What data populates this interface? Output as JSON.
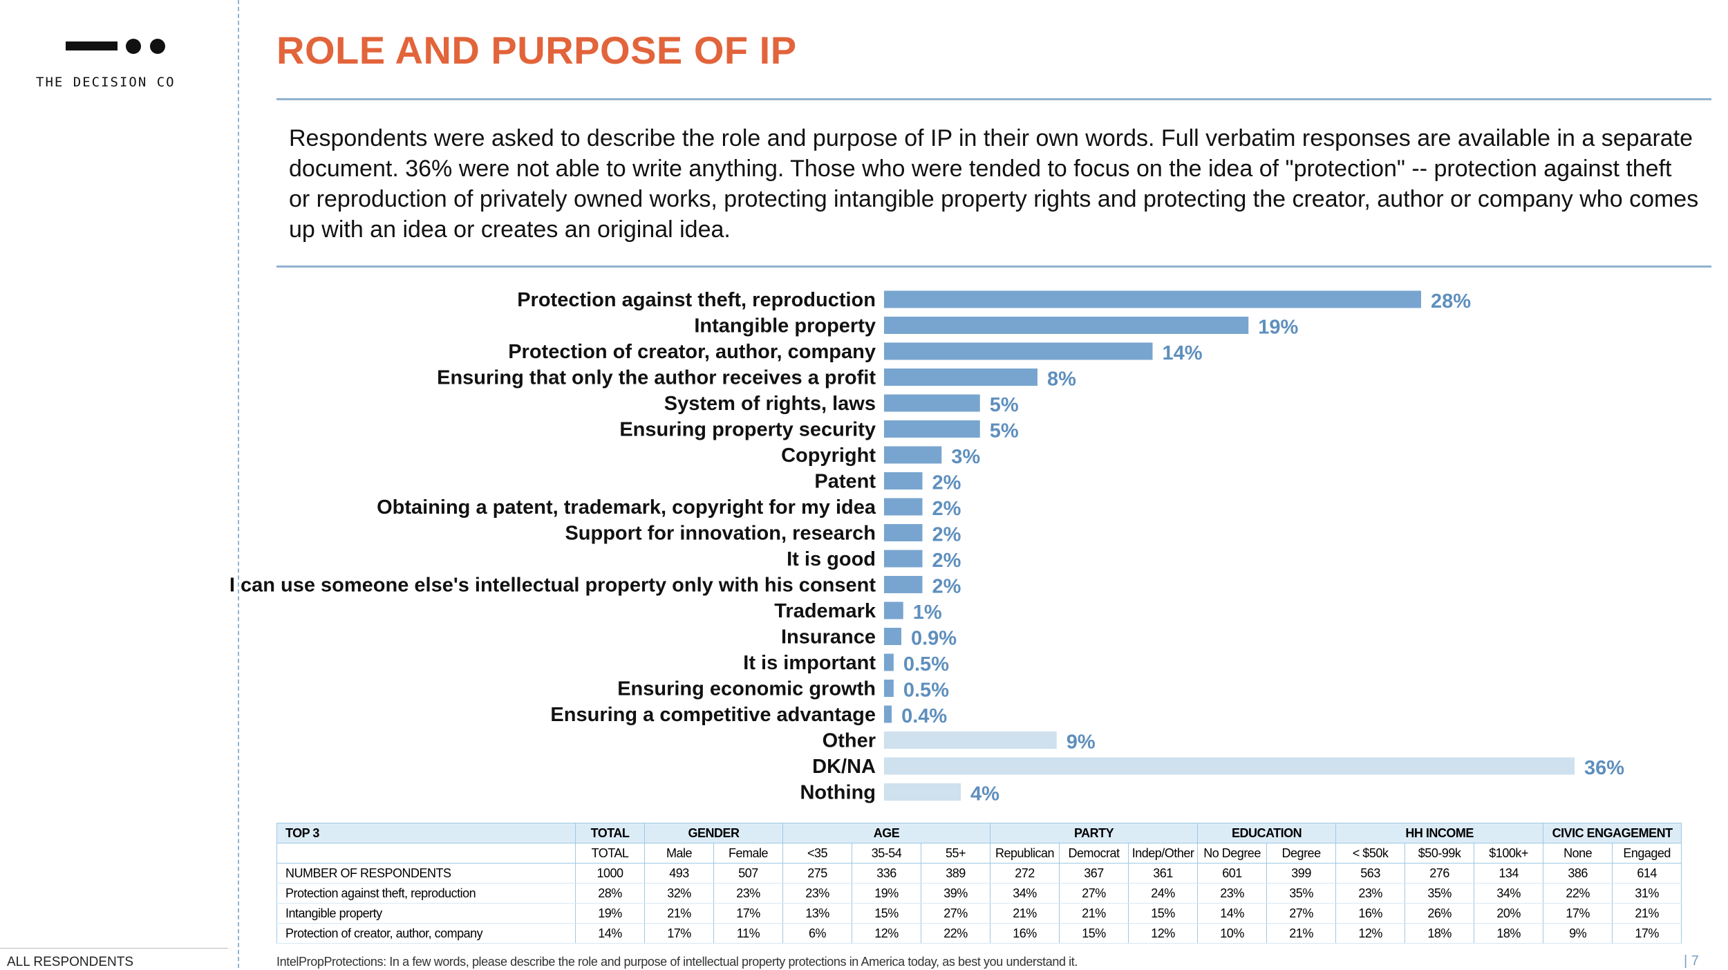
{
  "brand": {
    "name": "THE DECISION CO"
  },
  "header": {
    "title": "ROLE AND PURPOSE OF IP"
  },
  "intro": "Respondents were asked to describe the role and purpose of IP in their own words. Full verbatim responses are available in a separate document. 36% were not able to write anything.  Those who were tended to focus on the idea of \"protection\" -- protection against theft or reproduction of privately owned works, protecting intangible property rights and protecting the creator, author or company who comes up with an idea or creates an original idea.",
  "chart_data": {
    "type": "bar",
    "orientation": "horizontal",
    "title": "",
    "xlabel": "",
    "ylabel": "",
    "xlim": [
      0,
      36
    ],
    "categories": [
      "Protection against theft, reproduction",
      "Intangible property",
      "Protection of creator, author, company",
      "Ensuring that only the author receives a profit",
      "System of rights, laws",
      "Ensuring property security",
      "Copyright",
      "Patent",
      "Obtaining a patent, trademark, copyright for my idea",
      "Support for innovation, research",
      "It is good",
      "I can use someone else's intellectual property only with his consent",
      "Trademark",
      "Insurance",
      "It is important",
      "Ensuring economic growth",
      "Ensuring a competitive advantage",
      "Other",
      "DK/NA",
      "Nothing"
    ],
    "values": [
      28,
      19,
      14,
      8,
      5,
      5,
      3,
      2,
      2,
      2,
      2,
      2,
      1,
      0.9,
      0.5,
      0.5,
      0.4,
      9,
      36,
      4
    ],
    "value_labels": [
      "28%",
      "19%",
      "14%",
      "8%",
      "5%",
      "5%",
      "3%",
      "2%",
      "2%",
      "2%",
      "2%",
      "2%",
      "1%",
      "0.9%",
      "0.5%",
      "0.5%",
      "0.4%",
      "9%",
      "36%",
      "4%"
    ],
    "groups": [
      "main",
      "main",
      "main",
      "main",
      "main",
      "main",
      "main",
      "main",
      "main",
      "main",
      "main",
      "main",
      "main",
      "main",
      "main",
      "main",
      "main",
      "other",
      "other",
      "other"
    ],
    "colors": {
      "main": "#78a5cf",
      "other": "#cfe0ee",
      "value_text": "#5e8fbd"
    }
  },
  "table": {
    "title": "TOP 3",
    "groups": [
      {
        "label": "TOTAL",
        "cols": [
          "TOTAL"
        ]
      },
      {
        "label": "GENDER",
        "cols": [
          "Male",
          "Female"
        ]
      },
      {
        "label": "AGE",
        "cols": [
          "<35",
          "35-54",
          "55+"
        ]
      },
      {
        "label": "PARTY",
        "cols": [
          "Republican",
          "Democrat",
          "Indep/Other"
        ]
      },
      {
        "label": "EDUCATION",
        "cols": [
          "No Degree",
          "Degree"
        ]
      },
      {
        "label": "HH INCOME",
        "cols": [
          "< $50k",
          "$50-99k",
          "$100k+"
        ]
      },
      {
        "label": "CIVIC ENGAGEMENT",
        "cols": [
          "None",
          "Engaged"
        ]
      }
    ],
    "rows": [
      {
        "label": "NUMBER OF RESPONDENTS",
        "values": [
          "1000",
          "493",
          "507",
          "275",
          "336",
          "389",
          "272",
          "367",
          "361",
          "601",
          "399",
          "563",
          "276",
          "134",
          "386",
          "614"
        ]
      },
      {
        "label": "Protection against theft, reproduction",
        "values": [
          "28%",
          "32%",
          "23%",
          "23%",
          "19%",
          "39%",
          "34%",
          "27%",
          "24%",
          "23%",
          "35%",
          "23%",
          "35%",
          "34%",
          "22%",
          "31%"
        ]
      },
      {
        "label": "Intangible property",
        "values": [
          "19%",
          "21%",
          "17%",
          "13%",
          "15%",
          "27%",
          "21%",
          "21%",
          "15%",
          "14%",
          "27%",
          "16%",
          "26%",
          "20%",
          "17%",
          "21%"
        ]
      },
      {
        "label": "Protection of creator, author, company",
        "values": [
          "14%",
          "17%",
          "11%",
          "6%",
          "12%",
          "22%",
          "16%",
          "15%",
          "12%",
          "10%",
          "21%",
          "12%",
          "18%",
          "18%",
          "9%",
          "17%"
        ]
      }
    ]
  },
  "footer": {
    "section": "ALL RESPONDENTS",
    "note": "IntelPropProtections: In a few words, please describe the role and purpose of intellectual property protections in America today, as best you understand it.",
    "page": "| 7"
  }
}
